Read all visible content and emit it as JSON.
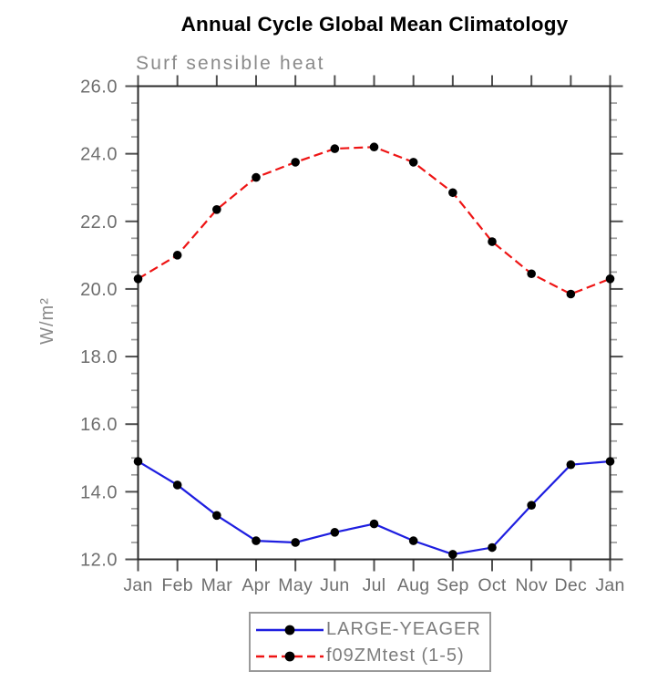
{
  "title": "Annual Cycle Global Mean Climatology",
  "subtitle": "Surf sensible heat",
  "chart_data": {
    "type": "line",
    "title": "Annual Cycle Global Mean Climatology",
    "subtitle": "Surf sensible heat",
    "ylabel": "W/m²",
    "xlabel": "",
    "categories": [
      "Jan",
      "Feb",
      "Mar",
      "Apr",
      "May",
      "Jun",
      "Jul",
      "Aug",
      "Sep",
      "Oct",
      "Nov",
      "Dec",
      "Jan"
    ],
    "series": [
      {
        "name": "LARGE-YEAGER",
        "line_style": "solid",
        "line_color": "#1e1ee0",
        "marker": "filled-circle",
        "marker_color": "#000000",
        "values": [
          14.9,
          14.2,
          13.3,
          12.55,
          12.5,
          12.8,
          13.05,
          12.55,
          12.15,
          12.35,
          13.6,
          14.8,
          14.9
        ]
      },
      {
        "name": "f09ZMtest (1-5)",
        "line_style": "dashed",
        "line_color": "#ee1414",
        "marker": "filled-circle",
        "marker_color": "#000000",
        "values": [
          20.3,
          21.0,
          22.35,
          23.3,
          23.75,
          24.15,
          24.2,
          23.75,
          22.85,
          21.4,
          20.45,
          19.85,
          20.3
        ]
      }
    ],
    "ylim": [
      12.0,
      26.0
    ],
    "ytick_values": [
      12,
      14,
      16,
      18,
      20,
      22,
      24,
      26
    ],
    "ytick_labels": [
      "12.0",
      "14.0",
      "16.0",
      "18.0",
      "20.0",
      "22.0",
      "24.0",
      "26.0"
    ],
    "yminor_step": 0.5,
    "grid": false,
    "frame": "box-with-outward-ticks",
    "legend_position": "bottom-center"
  },
  "legend": {
    "items": [
      {
        "label": "LARGE-YEAGER"
      },
      {
        "label": "f09ZMtest (1-5)"
      }
    ]
  },
  "colors": {
    "title": "#000000",
    "subtitle": "#8a8a8a",
    "axis": "#2b2b2b",
    "major_tick": "#4f4f4f",
    "minor_tick": "#9b9b9b",
    "tick_label": "#6e6e6e",
    "month_label": "#6e6e6e",
    "y_axis_title": "#8a8a8a",
    "legend_border": "#9a9a9a",
    "legend_text": "#7d7d7d",
    "series_blue": "#1e1ee0",
    "series_red": "#ee1414",
    "marker": "#000000",
    "background": "#ffffff"
  }
}
